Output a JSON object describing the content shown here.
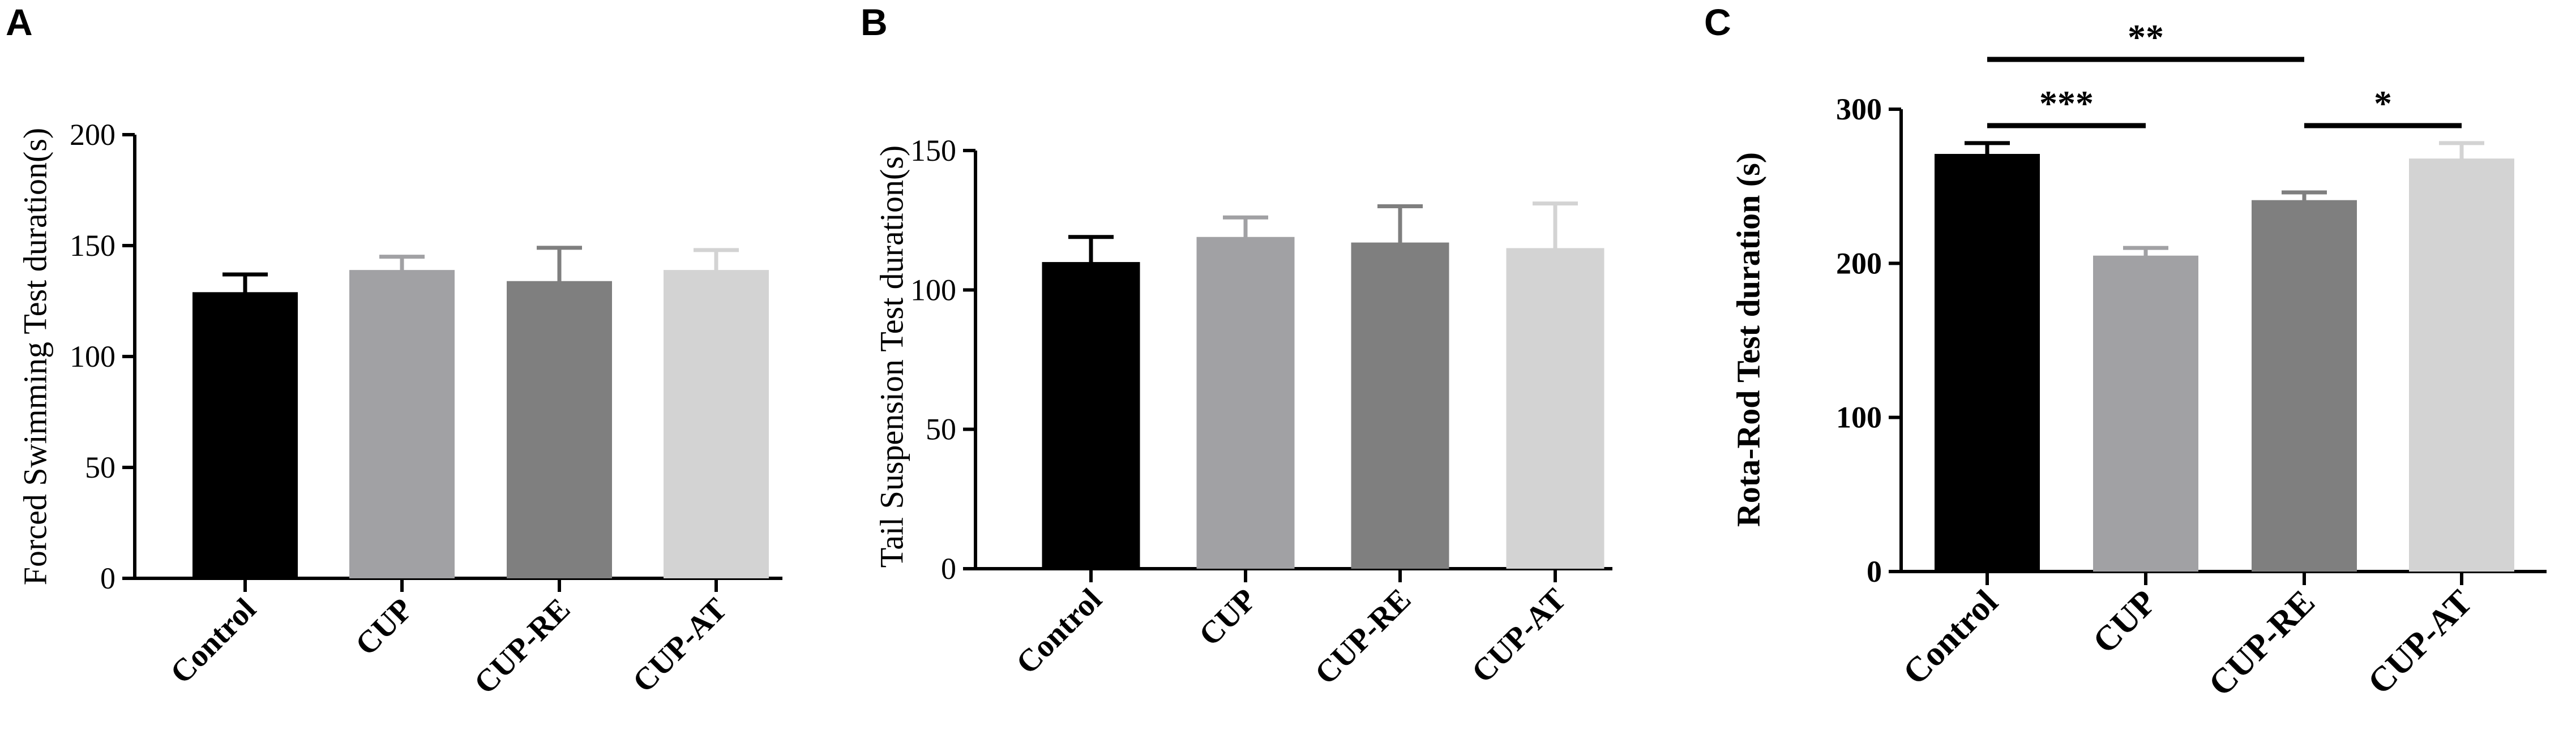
{
  "figure": {
    "colors": {
      "Control": "#000000",
      "CUP": "#a1a1a4",
      "CUP-RE": "#7f7f7f",
      "CUP-AT": "#d3d3d3"
    }
  },
  "chart_data": [
    {
      "panel": "A",
      "type": "bar",
      "categories": [
        "Control",
        "CUP",
        "CUP-RE",
        "CUP-AT"
      ],
      "values": [
        129,
        139,
        134,
        139
      ],
      "errors": [
        8,
        6,
        15,
        9
      ],
      "ylabel": "Forced Swimming Test duration(s)",
      "ylim": [
        0,
        200
      ],
      "yticks": [
        "0",
        "50",
        "100",
        "150",
        "200"
      ],
      "grid": false,
      "significance": []
    },
    {
      "panel": "B",
      "type": "bar",
      "categories": [
        "Control",
        "CUP",
        "CUP-RE",
        "CUP-AT"
      ],
      "values": [
        110,
        119,
        117,
        115
      ],
      "errors": [
        9,
        7,
        13,
        16
      ],
      "ylabel": "Tail Suspension Test duration(s)",
      "ylim": [
        0,
        150
      ],
      "yticks": [
        "0",
        "50",
        "100",
        "150"
      ],
      "grid": false,
      "significance": []
    },
    {
      "panel": "C",
      "type": "bar",
      "categories": [
        "Control",
        "CUP",
        "CUP-RE",
        "CUP-AT"
      ],
      "values": [
        271,
        205,
        241,
        268
      ],
      "errors": [
        7,
        5,
        5,
        10
      ],
      "ylabel": "Rota-Rod Test duration (s)",
      "ylim": [
        0,
        300
      ],
      "yticks": [
        "0",
        "100",
        "200",
        "300"
      ],
      "grid": false,
      "significance": [
        {
          "from": "Control",
          "to": "CUP-RE",
          "label": "**"
        },
        {
          "from": "Control",
          "to": "CUP",
          "label": "***"
        },
        {
          "from": "CUP-RE",
          "to": "CUP-AT",
          "label": "*"
        }
      ]
    }
  ]
}
